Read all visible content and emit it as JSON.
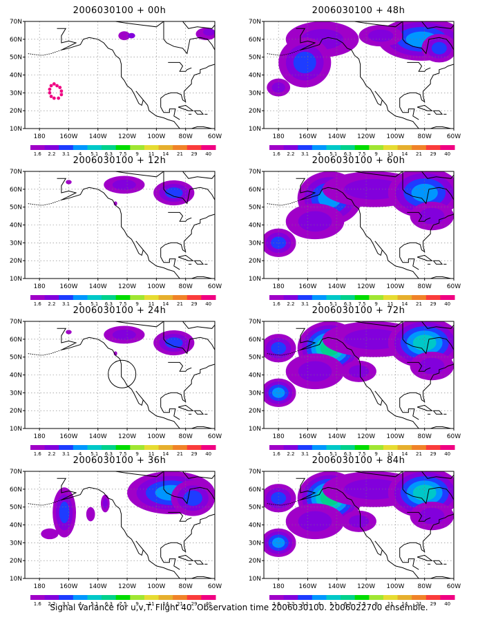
{
  "panels": [
    {
      "title": "2006030100 + 00h",
      "level": 0
    },
    {
      "title": "2006030100 + 48h",
      "level": 3
    },
    {
      "title": "2006030100 + 12h",
      "level": 1
    },
    {
      "title": "2006030100 + 60h",
      "level": 4
    },
    {
      "title": "2006030100 + 24h",
      "level": 1
    },
    {
      "title": "2006030100 + 72h",
      "level": 5
    },
    {
      "title": "2006030100 + 36h",
      "level": 2
    },
    {
      "title": "2006030100 + 84h",
      "level": 5
    }
  ],
  "axes": {
    "lon_labels": [
      "180",
      "160W",
      "140W",
      "120W",
      "100W",
      "80W",
      "60W"
    ],
    "lat_labels": [
      "70N",
      "60N",
      "50N",
      "40N",
      "30N",
      "20N",
      "10N"
    ],
    "lon_range": [
      -190,
      -60
    ],
    "lat_range": [
      10,
      70
    ]
  },
  "colorbar": {
    "labels": [
      "1.6",
      "2.2",
      "3.1",
      "4",
      "5.1",
      "6.3",
      "7.5",
      "9",
      "11",
      "14",
      "21",
      "29",
      "40"
    ],
    "colors": [
      "#a000c8",
      "#8200dc",
      "#1e3cff",
      "#0096ff",
      "#00c8c8",
      "#00d28c",
      "#00dc00",
      "#a0e632",
      "#e6dc32",
      "#e6af2d",
      "#f08228",
      "#fa3c3c",
      "#f00082"
    ]
  },
  "caption": "Signal Variance for u,v,T. Flight 40. Observation time 2006030100. 2006022700 ensemble."
}
